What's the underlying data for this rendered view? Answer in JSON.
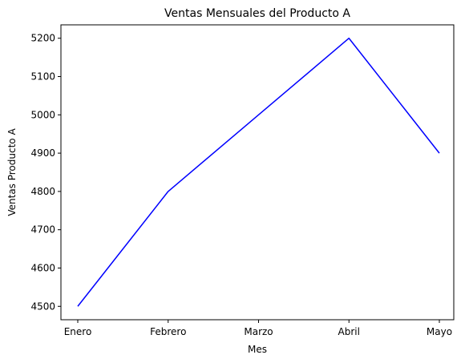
{
  "chart_data": {
    "type": "line",
    "title": "Ventas Mensuales del Producto A",
    "xlabel": "Mes",
    "ylabel": "Ventas Producto A",
    "categories": [
      "Enero",
      "Febrero",
      "Marzo",
      "Abril",
      "Mayo"
    ],
    "series": [
      {
        "values": [
          4500,
          4800,
          5000,
          5200,
          4900
        ],
        "color": "#0000ff"
      }
    ],
    "yticks": [
      4500,
      4600,
      4700,
      4800,
      4900,
      5000,
      5100,
      5200
    ],
    "ylim": [
      4465,
      5235
    ],
    "grid": false,
    "legend": "none"
  }
}
